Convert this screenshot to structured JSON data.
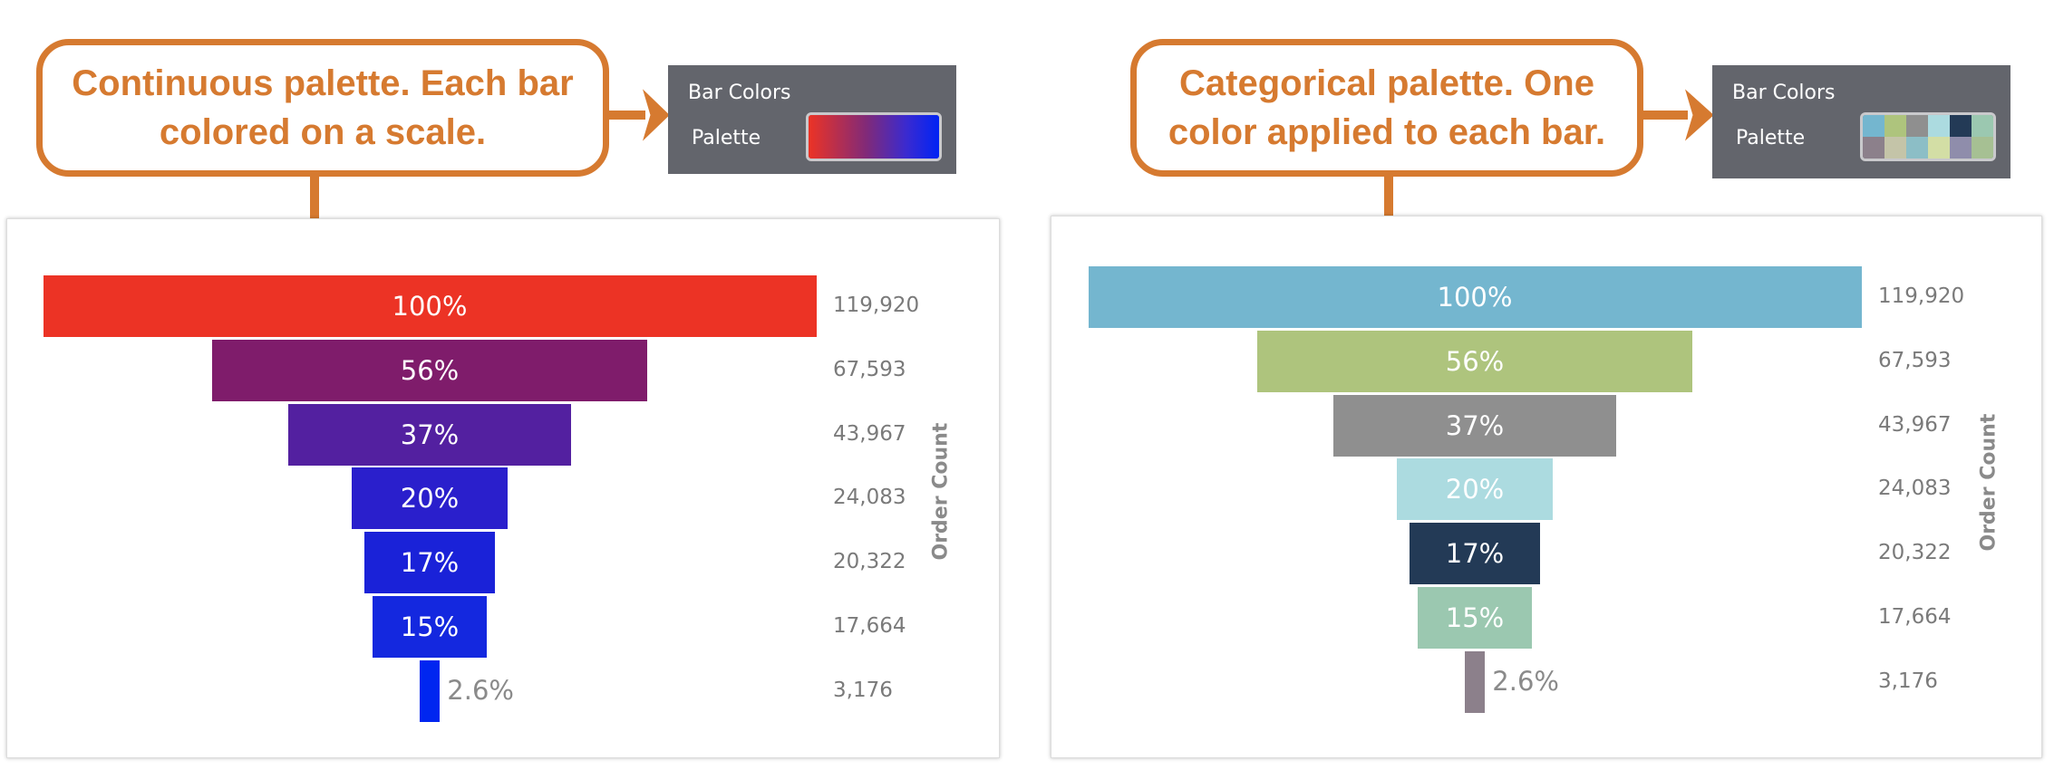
{
  "left": {
    "callout": "Continuous palette. Each bar colored on a scale.",
    "panel": {
      "title": "Bar Colors",
      "label": "Palette",
      "type": "continuous",
      "colors": [
        "#ec3325",
        "#7f2a7a",
        "#3a2ad0",
        "#0024f5"
      ]
    }
  },
  "right": {
    "callout": "Categorical palette. One color applied to each bar.",
    "panel": {
      "title": "Bar Colors",
      "label": "Palette",
      "type": "categorical",
      "colors": [
        "#74b6cf",
        "#aec47d",
        "#8f8f8f",
        "#acdbe0",
        "#233a56",
        "#9bc8b0",
        "#8c808b",
        "#c4c4a8",
        "#8cbec6",
        "#d3dea5",
        "#8f8dab",
        "#a6c093"
      ]
    }
  },
  "chart_data": [
    {
      "type": "bar",
      "subtype": "funnel",
      "ylabel": "Order Count",
      "values": [
        119920,
        67593,
        43967,
        24083,
        20322,
        17664,
        3176
      ],
      "value_labels": [
        "119,920",
        "67,593",
        "43,967",
        "24,083",
        "20,322",
        "17,664",
        "3,176"
      ],
      "percent_labels": [
        "100%",
        "56%",
        "37%",
        "20%",
        "17%",
        "15%",
        "2.6%"
      ],
      "colors": [
        "#ec3325",
        "#7f1c6b",
        "#5320a0",
        "#2a1fcc",
        "#1a22d8",
        "#1428df",
        "#0026f0"
      ]
    },
    {
      "type": "bar",
      "subtype": "funnel",
      "ylabel": "Order Count",
      "values": [
        119920,
        67593,
        43967,
        24083,
        20322,
        17664,
        3176
      ],
      "value_labels": [
        "119,920",
        "67,593",
        "43,967",
        "24,083",
        "20,322",
        "17,664",
        "3,176"
      ],
      "percent_labels": [
        "100%",
        "56%",
        "37%",
        "20%",
        "17%",
        "15%",
        "2.6%"
      ],
      "colors": [
        "#74b6cf",
        "#aec47d",
        "#8f8f8f",
        "#acdbe0",
        "#233a56",
        "#9bc8b0",
        "#8c808b"
      ]
    }
  ]
}
